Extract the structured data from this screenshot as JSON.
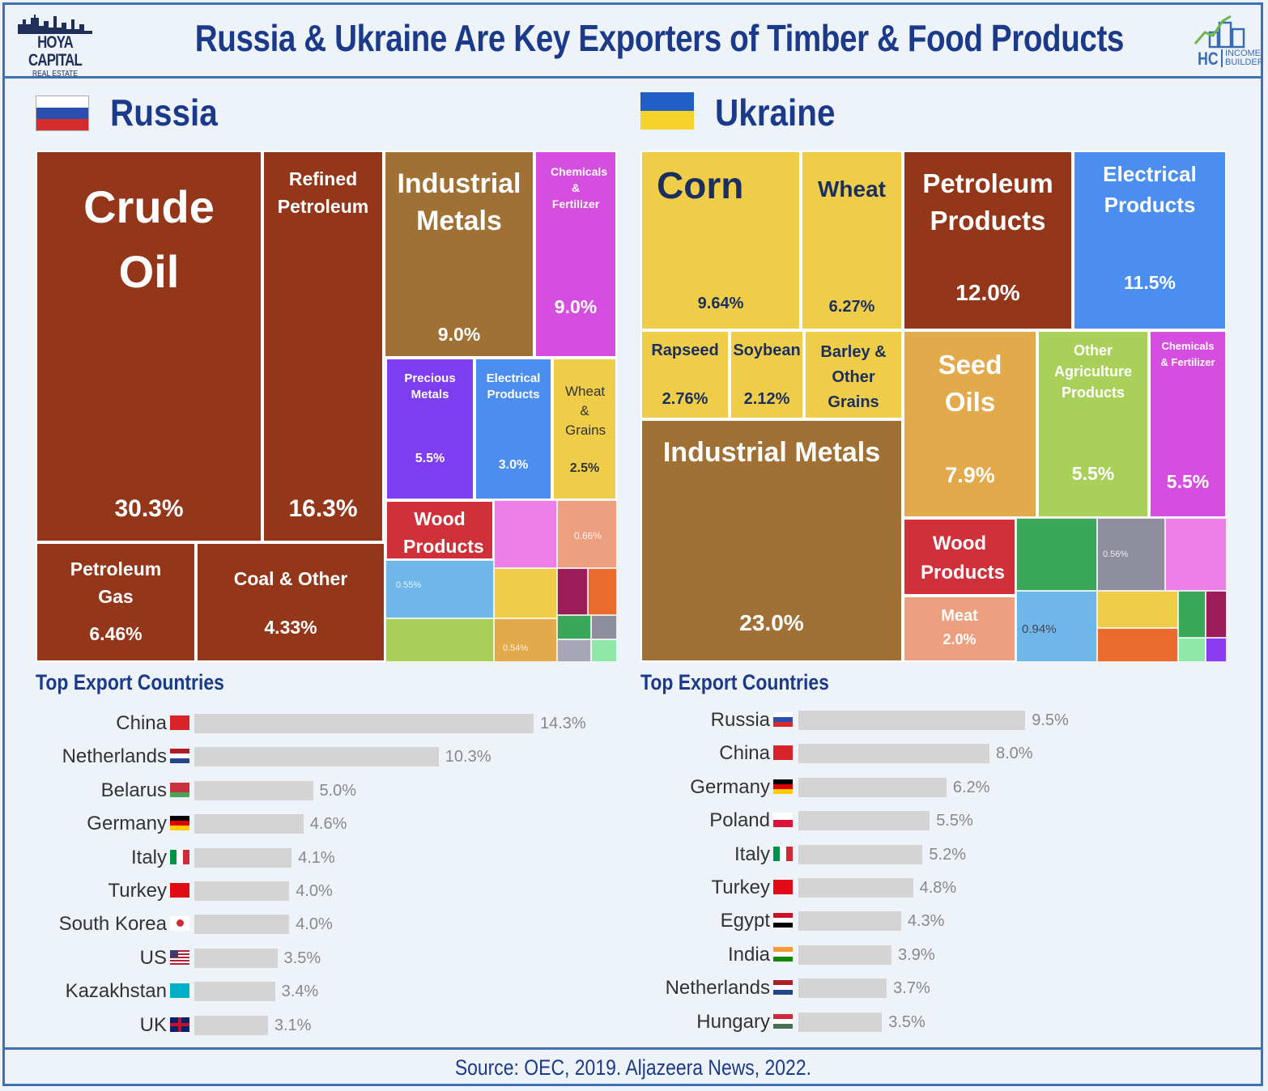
{
  "header": {
    "title": "Russia & Ukraine Are Key Exporters of Timber & Food Products",
    "logo_left_line1": "HOYA CAPITAL",
    "logo_left_line2": "REAL ESTATE",
    "logo_right_hc": "HC",
    "logo_right_line1": "INCOME",
    "logo_right_line2": "BUILDER"
  },
  "russia": {
    "name": "Russia",
    "countries_title": "Top Export Countries"
  },
  "ukraine": {
    "name": "Ukraine",
    "countries_title": "Top Export Countries"
  },
  "colors": {
    "brown": "#93361a",
    "ochre": "#a07034",
    "magenta": "#d64ee0",
    "purple": "#7d3df0",
    "blue": "#4b8ef0",
    "yellow": "#efcd49",
    "red": "#cf303a",
    "orange_sand": "#e2aa4b",
    "lime": "#a9d15a",
    "salmon": "#eca07f",
    "title_blue": "#1b3a8a"
  },
  "chart_data": [
    {
      "type": "treemap",
      "title": "Russia",
      "items": [
        {
          "name": "Crude Oil",
          "value": "30.3%"
        },
        {
          "name": "Refined Petroleum",
          "value": "16.3%"
        },
        {
          "name": "Industrial Metals",
          "value": "9.0%"
        },
        {
          "name": "Chemicals & Fertilizer",
          "value": "9.0%"
        },
        {
          "name": "Precious Metals",
          "value": "5.5%"
        },
        {
          "name": "Electrical Products",
          "value": "3.0%"
        },
        {
          "name": "Wheat & Grains",
          "value": "2.5%"
        },
        {
          "name": "Petroleum Gas",
          "value": "6.46%"
        },
        {
          "name": "Coal & Other",
          "value": "4.33%"
        },
        {
          "name": "Wood Products",
          "value": ""
        }
      ]
    },
    {
      "type": "treemap",
      "title": "Ukraine",
      "items": [
        {
          "name": "Corn",
          "value": "9.64%"
        },
        {
          "name": "Wheat",
          "value": "6.27%"
        },
        {
          "name": "Rapseed",
          "value": "2.76%"
        },
        {
          "name": "Soybean",
          "value": "2.12%"
        },
        {
          "name": "Barley & Other Grains",
          "value": ""
        },
        {
          "name": "Industrial Metals",
          "value": "23.0%"
        },
        {
          "name": "Petroleum Products",
          "value": "12.0%"
        },
        {
          "name": "Electrical Products",
          "value": "11.5%"
        },
        {
          "name": "Seed Oils",
          "value": "7.9%"
        },
        {
          "name": "Other Agriculture Products",
          "value": "5.5%"
        },
        {
          "name": "Chemicals & Fertilizer",
          "value": "5.5%"
        },
        {
          "name": "Wood Products",
          "value": ""
        },
        {
          "name": "Meat",
          "value": "2.0%"
        }
      ]
    },
    {
      "type": "bar",
      "title": "Top Export Countries",
      "categories": [
        "China",
        "Netherlands",
        "Belarus",
        "Germany",
        "Italy",
        "Turkey",
        "South Korea",
        "US",
        "Kazakhstan",
        "UK"
      ],
      "values": [
        14.3,
        10.3,
        5.0,
        4.6,
        4.1,
        4.0,
        4.0,
        3.5,
        3.4,
        3.1
      ],
      "labels": [
        "14.3%",
        "10.3%",
        "5.0%",
        "4.6%",
        "4.1%",
        "4.0%",
        "4.0%",
        "3.5%",
        "3.4%",
        "3.1%"
      ]
    },
    {
      "type": "bar",
      "title": "Top Export Countries",
      "categories": [
        "Russia",
        "China",
        "Germany",
        "Poland",
        "Italy",
        "Turkey",
        "Egypt",
        "India",
        "Netherlands",
        "Hungary"
      ],
      "values": [
        9.5,
        8.0,
        6.2,
        5.5,
        5.2,
        4.8,
        4.3,
        3.9,
        3.7,
        3.5
      ],
      "labels": [
        "9.5%",
        "8.0%",
        "6.2%",
        "5.5%",
        "5.2%",
        "4.8%",
        "4.3%",
        "3.9%",
        "3.7%",
        "3.5%"
      ]
    }
  ],
  "treemap_small_labels": {
    "ru_wood_pct": "",
    "ru_small_1": "0.55%",
    "ru_small_2": "0.66%",
    "ru_small_3": "0.54%",
    "ua_small_1": "0.94%",
    "ua_small_2": "0.56%"
  },
  "footer": {
    "source": "Source: OEC, 2019. Aljazeera News, 2022."
  }
}
